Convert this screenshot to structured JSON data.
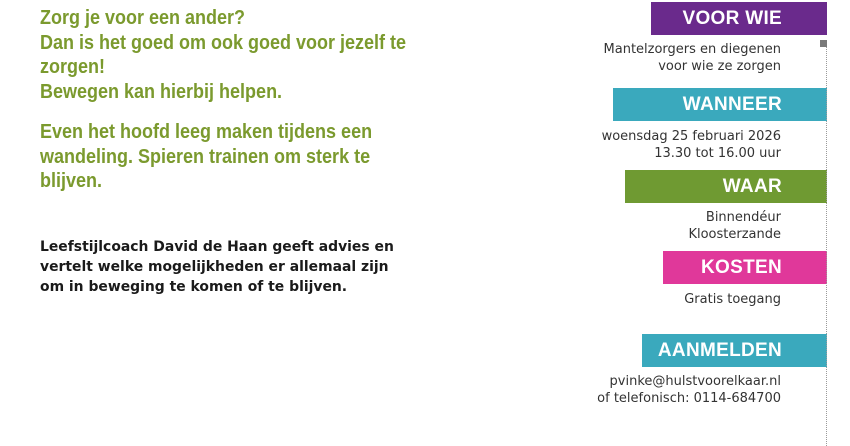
{
  "intro": {
    "lines": [
      "Zorg je voor een ander?",
      "Dan is het goed om ook goed voor jezelf te",
      "zorgen!",
      "Bewegen kan hierbij helpen."
    ],
    "lines2": [
      "Even het hoofd leeg maken tijdens een",
      "wandeling. Spieren trainen om sterk te",
      "blijven."
    ],
    "color": "#7b9a2e"
  },
  "body": {
    "lines": [
      "Leefstijlcoach David de Haan geeft advies en",
      "vertelt welke mogelijkheden er allemaal zijn",
      "om in beweging te komen of te blijven."
    ]
  },
  "sections": {
    "voor_wie": {
      "label": "VOOR WIE",
      "color": "#6a2a8c",
      "lines": [
        "Mantelzorgers en diegenen",
        "voor wie ze zorgen"
      ]
    },
    "wanneer": {
      "label": "WANNEER",
      "color": "#3aa9bd",
      "lines": [
        "woensdag 25 februari 2026",
        "13.30 tot 16.00 uur"
      ]
    },
    "waar": {
      "label": "WAAR",
      "color": "#6f9a32",
      "lines": [
        "Binnendéur",
        "Kloosterzande"
      ]
    },
    "kosten": {
      "label": "KOSTEN",
      "color": "#e0389a",
      "lines": [
        "Gratis toegang"
      ]
    },
    "aanmelden": {
      "label": "AANMELDEN",
      "color": "#3aa9bd",
      "lines": [
        "pvinke@hulstvoorelkaar.nl",
        "of telefonisch: 0114-684700"
      ]
    }
  }
}
